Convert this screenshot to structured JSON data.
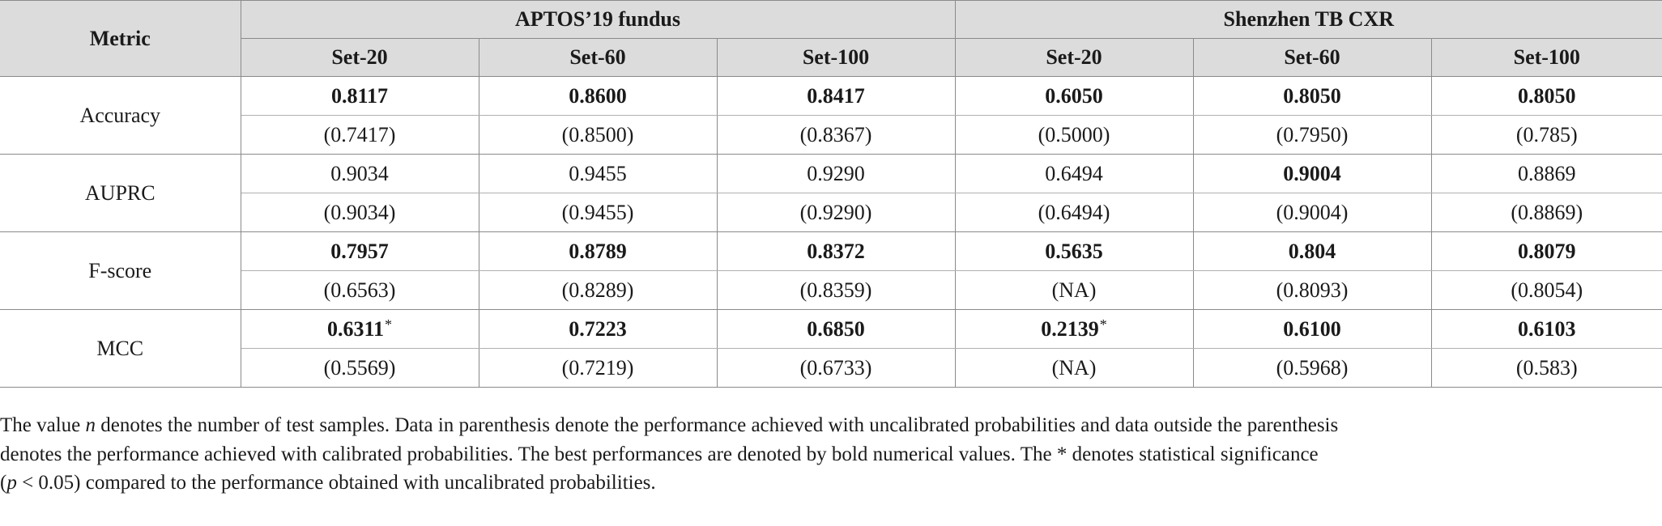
{
  "table": {
    "metric_header": "Metric",
    "groups": [
      "APTOS’19 fundus",
      "Shenzhen TB CXR"
    ],
    "sets": [
      "Set-20",
      "Set-60",
      "Set-100",
      "Set-20",
      "Set-60",
      "Set-100"
    ],
    "rows": [
      {
        "metric": "Accuracy",
        "values": [
          "0.8117",
          "0.8600",
          "0.8417",
          "0.6050",
          "0.8050",
          "0.8050"
        ],
        "bold": [
          true,
          true,
          true,
          true,
          true,
          true
        ],
        "star": [
          false,
          false,
          false,
          false,
          false,
          false
        ],
        "uncalibrated": [
          "(0.7417)",
          "(0.8500)",
          "(0.8367)",
          "(0.5000)",
          "(0.7950)",
          "(0.785)"
        ]
      },
      {
        "metric": "AUPRC",
        "values": [
          "0.9034",
          "0.9455",
          "0.9290",
          "0.6494",
          "0.9004",
          "0.8869"
        ],
        "bold": [
          false,
          false,
          false,
          false,
          true,
          false
        ],
        "star": [
          false,
          false,
          false,
          false,
          false,
          false
        ],
        "uncalibrated": [
          "(0.9034)",
          "(0.9455)",
          "(0.9290)",
          "(0.6494)",
          "(0.9004)",
          "(0.8869)"
        ]
      },
      {
        "metric": "F-score",
        "values": [
          "0.7957",
          "0.8789",
          "0.8372",
          "0.5635",
          "0.804",
          "0.8079"
        ],
        "bold": [
          true,
          true,
          true,
          true,
          true,
          true
        ],
        "star": [
          false,
          false,
          false,
          false,
          false,
          false
        ],
        "uncalibrated": [
          "(0.6563)",
          "(0.8289)",
          "(0.8359)",
          "(NA)",
          "(0.8093)",
          "(0.8054)"
        ]
      },
      {
        "metric": "MCC",
        "values": [
          "0.6311",
          "0.7223",
          "0.6850",
          "0.2139",
          "0.6100",
          "0.6103"
        ],
        "bold": [
          true,
          true,
          true,
          true,
          true,
          true
        ],
        "star": [
          true,
          false,
          false,
          true,
          false,
          false
        ],
        "uncalibrated": [
          "(0.5569)",
          "(0.7219)",
          "(0.6733)",
          "(NA)",
          "(0.5968)",
          "(0.583)"
        ]
      }
    ],
    "star_symbol": "*"
  },
  "footnote": {
    "line1_a": "The value ",
    "line1_var": "n",
    "line1_b": " denotes the number of test samples. Data in parenthesis denote the performance achieved with uncalibrated probabilities and data outside the parenthesis",
    "line2": "denotes the performance achieved with calibrated probabilities. The best performances are denoted by bold numerical values. The * denotes statistical significance",
    "line3_open": "(",
    "line3_var": "p",
    "line3_cond": " < 0.05) compared to the performance obtained with uncalibrated probabilities."
  }
}
